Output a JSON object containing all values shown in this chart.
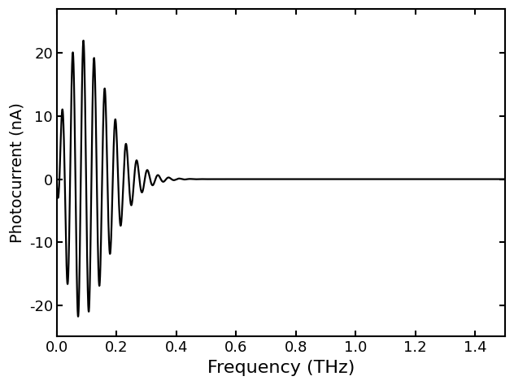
{
  "title": "",
  "xlabel": "Frequency (THz)",
  "ylabel": "Photocurrent (nA)",
  "xlim": [
    0.0,
    1.5
  ],
  "ylim": [
    -25,
    27
  ],
  "xticks": [
    0.0,
    0.2,
    0.4,
    0.6,
    0.8,
    1.0,
    1.2,
    1.4
  ],
  "yticks": [
    -20,
    -10,
    0,
    10,
    20
  ],
  "line_color": "#000000",
  "line_width": 1.6,
  "background_color": "#ffffff",
  "tick_direction": "in",
  "xlabel_fontsize": 16,
  "ylabel_fontsize": 14,
  "tick_fontsize": 13,
  "signal_params": {
    "amp": 22.0,
    "f_cut": 0.14,
    "beta": 1.8,
    "t_delay": 28.0,
    "phi": -1.57,
    "alpha": 0.7
  }
}
